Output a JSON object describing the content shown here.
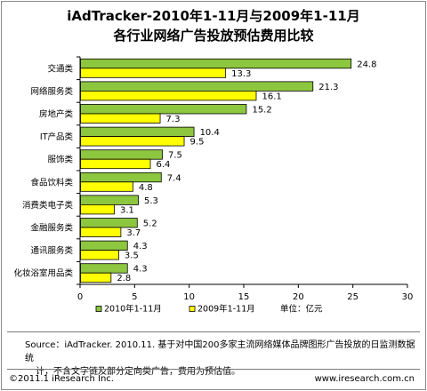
{
  "title_line1": "iAdTracker-2010年1-11月与2009年1-11月",
  "title_line2": "各行业网络广告投放预估费用比较",
  "chart_data": {
    "type": "bar",
    "orientation": "horizontal",
    "categories": [
      "交通类",
      "网络服务类",
      "房地产类",
      "IT产品类",
      "服饰类",
      "食品饮料类",
      "消费类电子类",
      "金融服务类",
      "通讯服务类",
      "化妆浴室用品类"
    ],
    "series": [
      {
        "name": "2010年1-11月",
        "color": "#8dc63f",
        "values": [
          24.8,
          21.3,
          15.2,
          10.4,
          7.5,
          7.4,
          5.3,
          5.2,
          4.3,
          4.3
        ]
      },
      {
        "name": "2009年1-11月",
        "color": "#ffff00",
        "values": [
          13.3,
          16.1,
          7.3,
          9.5,
          6.4,
          4.8,
          3.1,
          3.7,
          3.5,
          2.8
        ]
      }
    ],
    "xlim": [
      0,
      30
    ],
    "xticks": [
      0,
      5,
      10,
      15,
      20,
      25,
      30
    ],
    "unit_label": "单位：亿元",
    "grid": false,
    "legend_position": "bottom"
  },
  "source_line1": "Source：iAdTracker. 2010.11. 基于对中国200多家主流网络媒体品牌图形广告投放的日监测数据统",
  "source_line2": "计，不含文字链及部分定向类广告，费用为预估值。",
  "copyright": "©2011.1 iResearch Inc.",
  "website": "www.iresearch.com.cn"
}
